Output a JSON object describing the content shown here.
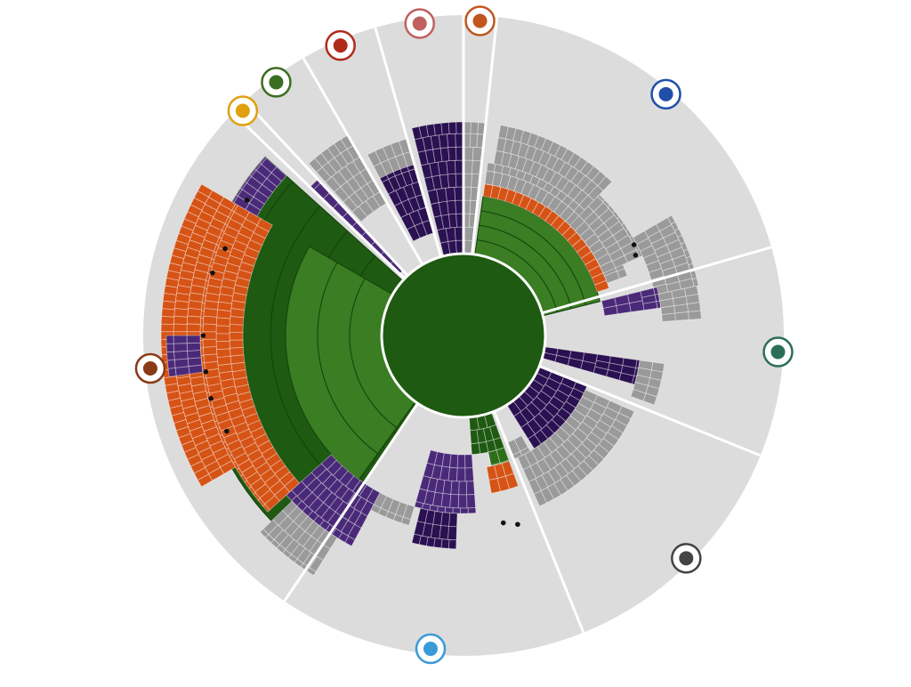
{
  "chart_data": {
    "type": "sunburst",
    "description_free": true,
    "center_ring": {
      "color": "#1e5a12"
    },
    "level_colors": {
      "green_dark": "#1e5a12",
      "green_mid": "#2d6e1a",
      "green_light": "#3a7d22",
      "orange": "#d65316",
      "red": "#b8320f",
      "purple_dark": "#2a1151",
      "purple": "#4a2a78",
      "purple_light": "#5c3a88",
      "gray": "#9a9a9a",
      "gray_light": "#b5b5b5",
      "background_sector": "#dcdcdc"
    },
    "sectors": [
      {
        "id": "ear",
        "icon": "ear-icon",
        "icon_color": "#444444",
        "start": 112,
        "end": 158
      },
      {
        "id": "eye",
        "icon": "eye-icon",
        "icon_color": "#2b6e5a",
        "start": 74,
        "end": 112
      },
      {
        "id": "head",
        "icon": "head-icon",
        "icon_color": "#1f4fa8",
        "start": 6,
        "end": 74
      },
      {
        "id": "uterus",
        "icon": "uterus-icon",
        "icon_color": "#c0571f",
        "start": 0,
        "end": 6
      },
      {
        "id": "lungs",
        "icon": "lungs-icon",
        "icon_color": "#c06060",
        "start": 344,
        "end": 360
      },
      {
        "id": "heart",
        "icon": "heart-icon",
        "icon_color": "#b02a1a",
        "start": 330,
        "end": 344
      },
      {
        "id": "gut",
        "icon": "intestine-icon",
        "icon_color": "#3a6e22",
        "start": 317,
        "end": 330
      },
      {
        "id": "stomach",
        "icon": "stomach-icon",
        "icon_color": "#e0a010",
        "start": 314,
        "end": 317
      },
      {
        "id": "skeleton",
        "icon": "bone-icon",
        "icon_color": "#8a3a16",
        "start": 214,
        "end": 314
      },
      {
        "id": "skin",
        "icon": "skin-icon",
        "icon_color": "#3a9ad8",
        "start": 158,
        "end": 214
      }
    ],
    "layers": [
      {
        "sector": "head",
        "inner": 92,
        "outer": 158,
        "start": 8,
        "end": 76,
        "color": "green_light",
        "rings": 3
      },
      {
        "sector": "head",
        "inner": 158,
        "outer": 172,
        "start": 8,
        "end": 72,
        "color": "orange"
      },
      {
        "sector": "head",
        "inner": 172,
        "outer": 196,
        "start": 8,
        "end": 70,
        "color": "gray"
      },
      {
        "sector": "head",
        "inner": 196,
        "outer": 240,
        "start": 10,
        "end": 44,
        "color": "gray"
      },
      {
        "sector": "head",
        "inner": 172,
        "outer": 220,
        "start": 44,
        "end": 66,
        "color": "gray"
      },
      {
        "sector": "head",
        "inner": 220,
        "outer": 270,
        "start": 60,
        "end": 78,
        "color": "gray"
      },
      {
        "sector": "head",
        "inner": 160,
        "outer": 224,
        "start": 76,
        "end": 82,
        "color": "purple"
      },
      {
        "sector": "head",
        "inner": 224,
        "outer": 268,
        "start": 78,
        "end": 86,
        "color": "gray"
      },
      {
        "sector": "eye",
        "inner": 92,
        "outer": 200,
        "start": 98,
        "end": 106,
        "color": "purple_dark"
      },
      {
        "sector": "eye",
        "inner": 200,
        "outer": 228,
        "start": 98,
        "end": 110,
        "color": "gray"
      },
      {
        "sector": "ear",
        "inner": 92,
        "outer": 150,
        "start": 112,
        "end": 148,
        "color": "purple_dark"
      },
      {
        "sector": "ear",
        "inner": 150,
        "outer": 210,
        "start": 114,
        "end": 156,
        "color": "gray"
      },
      {
        "sector": "ear",
        "inner": 130,
        "outer": 150,
        "start": 150,
        "end": 158,
        "color": "gray"
      },
      {
        "sector": "skin",
        "inner": 92,
        "outer": 134,
        "start": 160,
        "end": 176,
        "color": "green_dark"
      },
      {
        "sector": "skin",
        "inner": 134,
        "outer": 150,
        "start": 160,
        "end": 168,
        "color": "green_mid"
      },
      {
        "sector": "skin",
        "inner": 150,
        "outer": 180,
        "start": 160,
        "end": 170,
        "color": "orange"
      },
      {
        "sector": "skin",
        "inner": 134,
        "outer": 200,
        "start": 176,
        "end": 196,
        "color": "purple"
      },
      {
        "sector": "skin",
        "inner": 200,
        "outer": 240,
        "start": 182,
        "end": 194,
        "color": "purple_dark"
      },
      {
        "sector": "skin",
        "inner": 200,
        "outer": 222,
        "start": 196,
        "end": 208,
        "color": "gray"
      },
      {
        "sector": "skeleton",
        "inner": 92,
        "outer": 300,
        "start": 214,
        "end": 312,
        "color": "green_dark",
        "rings": 4
      },
      {
        "sector": "skeleton",
        "inner": 92,
        "outer": 200,
        "start": 216,
        "end": 300,
        "color": "green_light",
        "rings": 2
      },
      {
        "sector": "skeleton",
        "inner": 248,
        "outer": 296,
        "start": 228,
        "end": 300,
        "color": "orange"
      },
      {
        "sector": "skeleton",
        "inner": 200,
        "outer": 268,
        "start": 208,
        "end": 228,
        "color": "purple"
      },
      {
        "sector": "skeleton",
        "inner": 268,
        "outer": 318,
        "start": 212,
        "end": 226,
        "color": "gray"
      },
      {
        "sector": "skeleton",
        "inner": 296,
        "outer": 340,
        "start": 240,
        "end": 300,
        "color": "orange"
      },
      {
        "sector": "skeleton",
        "inner": 296,
        "outer": 334,
        "start": 262,
        "end": 270,
        "color": "purple"
      },
      {
        "sector": "skeleton",
        "inner": 268,
        "outer": 300,
        "start": 300,
        "end": 312,
        "color": "purple"
      },
      {
        "sector": "gut",
        "inner": 172,
        "outer": 260,
        "start": 318,
        "end": 330,
        "color": "gray"
      },
      {
        "sector": "stomach",
        "inner": 100,
        "outer": 240,
        "start": 314,
        "end": 317,
        "color": "purple"
      },
      {
        "sector": "heart",
        "inner": 120,
        "outer": 210,
        "start": 332,
        "end": 344,
        "color": "purple_dark"
      },
      {
        "sector": "heart",
        "inner": 200,
        "outer": 230,
        "start": 332,
        "end": 344,
        "color": "gray"
      },
      {
        "sector": "lungs",
        "inner": 92,
        "outer": 240,
        "start": 346,
        "end": 360,
        "color": "purple_dark"
      },
      {
        "sector": "uterus",
        "inner": 92,
        "outer": 240,
        "start": 0,
        "end": 6,
        "color": "gray"
      }
    ],
    "markers": [
      {
        "sector": "head",
        "angle": 62,
        "radius": 236
      },
      {
        "sector": "head",
        "angle": 65,
        "radius": 232
      },
      {
        "sector": "skeleton",
        "angle": 248,
        "radius": 312
      },
      {
        "sector": "skeleton",
        "angle": 256,
        "radius": 318
      },
      {
        "sector": "skeleton",
        "angle": 262,
        "radius": 318
      },
      {
        "sector": "skeleton",
        "angle": 270,
        "radius": 318
      },
      {
        "sector": "skeleton",
        "angle": 284,
        "radius": 316
      },
      {
        "sector": "skeleton",
        "angle": 290,
        "radius": 310
      },
      {
        "sector": "skeleton",
        "angle": 302,
        "radius": 312
      },
      {
        "sector": "skin",
        "angle": 164,
        "radius": 240
      },
      {
        "sector": "skin",
        "angle": 168,
        "radius": 234
      }
    ]
  }
}
